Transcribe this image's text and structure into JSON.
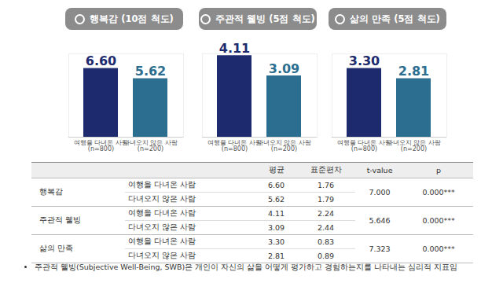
{
  "chart_data": [
    {
      "type": "bar",
      "title": "행복감 (10점 척도)",
      "categories": [
        "여행을 다녀온 사람\n(n=800)",
        "다녀오지 않은 사람\n(n=200)"
      ],
      "values": [
        6.6,
        5.62
      ],
      "value_labels": [
        "6.60",
        "5.62"
      ],
      "colors": [
        "#1d2b6e",
        "#2c6e8f"
      ],
      "ylim": [
        0,
        8
      ],
      "data_labels": true,
      "tick_labels": "x"
    },
    {
      "type": "bar",
      "title": "주관적 웰빙 (5점 척도)",
      "categories": [
        "여행을 다녀온 사람\n(n=800)",
        "다녀오지 않은 사람\n(n=200)"
      ],
      "values": [
        4.11,
        3.09
      ],
      "value_labels": [
        "4.11",
        "3.09"
      ],
      "colors": [
        "#1d2b6e",
        "#2c6e8f"
      ],
      "ylim": [
        0,
        4.2
      ],
      "data_labels": true,
      "tick_labels": "x"
    },
    {
      "type": "bar",
      "title": "삶의 만족 (5점 척도)",
      "categories": [
        "여행을 다녀온 사람\n(n=800)",
        "다녀오지 않은 사람\n(n=200)"
      ],
      "values": [
        3.3,
        2.81
      ],
      "value_labels": [
        "3.30",
        "2.81"
      ],
      "colors": [
        "#1d2b6e",
        "#2c6e8f"
      ],
      "ylim": [
        0,
        4
      ],
      "data_labels": true,
      "tick_labels": "x"
    }
  ],
  "table": {
    "columns": [
      "평균",
      "표준편차",
      "t-value",
      "p"
    ],
    "groups": [
      {
        "label": "행복감",
        "t": "7.000",
        "p": "0.000***",
        "rows": [
          {
            "label": "여행을 다녀온 사람",
            "mean": "6.60",
            "sd": "1.76"
          },
          {
            "label": "다녀오지 않은 사람",
            "mean": "5.62",
            "sd": "1.79"
          }
        ]
      },
      {
        "label": "주관적 웰빙",
        "t": "5.646",
        "p": "0.000***",
        "rows": [
          {
            "label": "여행을 다녀온 사람",
            "mean": "4.11",
            "sd": "2.24"
          },
          {
            "label": "다녀오지 않은 사람",
            "mean": "3.09",
            "sd": "2.44"
          }
        ]
      },
      {
        "label": "삶의 만족",
        "t": "7.323",
        "p": "0.000***",
        "rows": [
          {
            "label": "여행을 다녀온 사람",
            "mean": "3.30",
            "sd": "0.83"
          },
          {
            "label": "다녀오지 않은 사람",
            "mean": "2.81",
            "sd": "0.89"
          }
        ]
      }
    ]
  },
  "footnote": "주관적 웰빙(Subjective Well-Being, SWB)은 개인이 자신의 삶을 어떻게 평가하고 경험하는지를 나타내는 심리적 지표임"
}
